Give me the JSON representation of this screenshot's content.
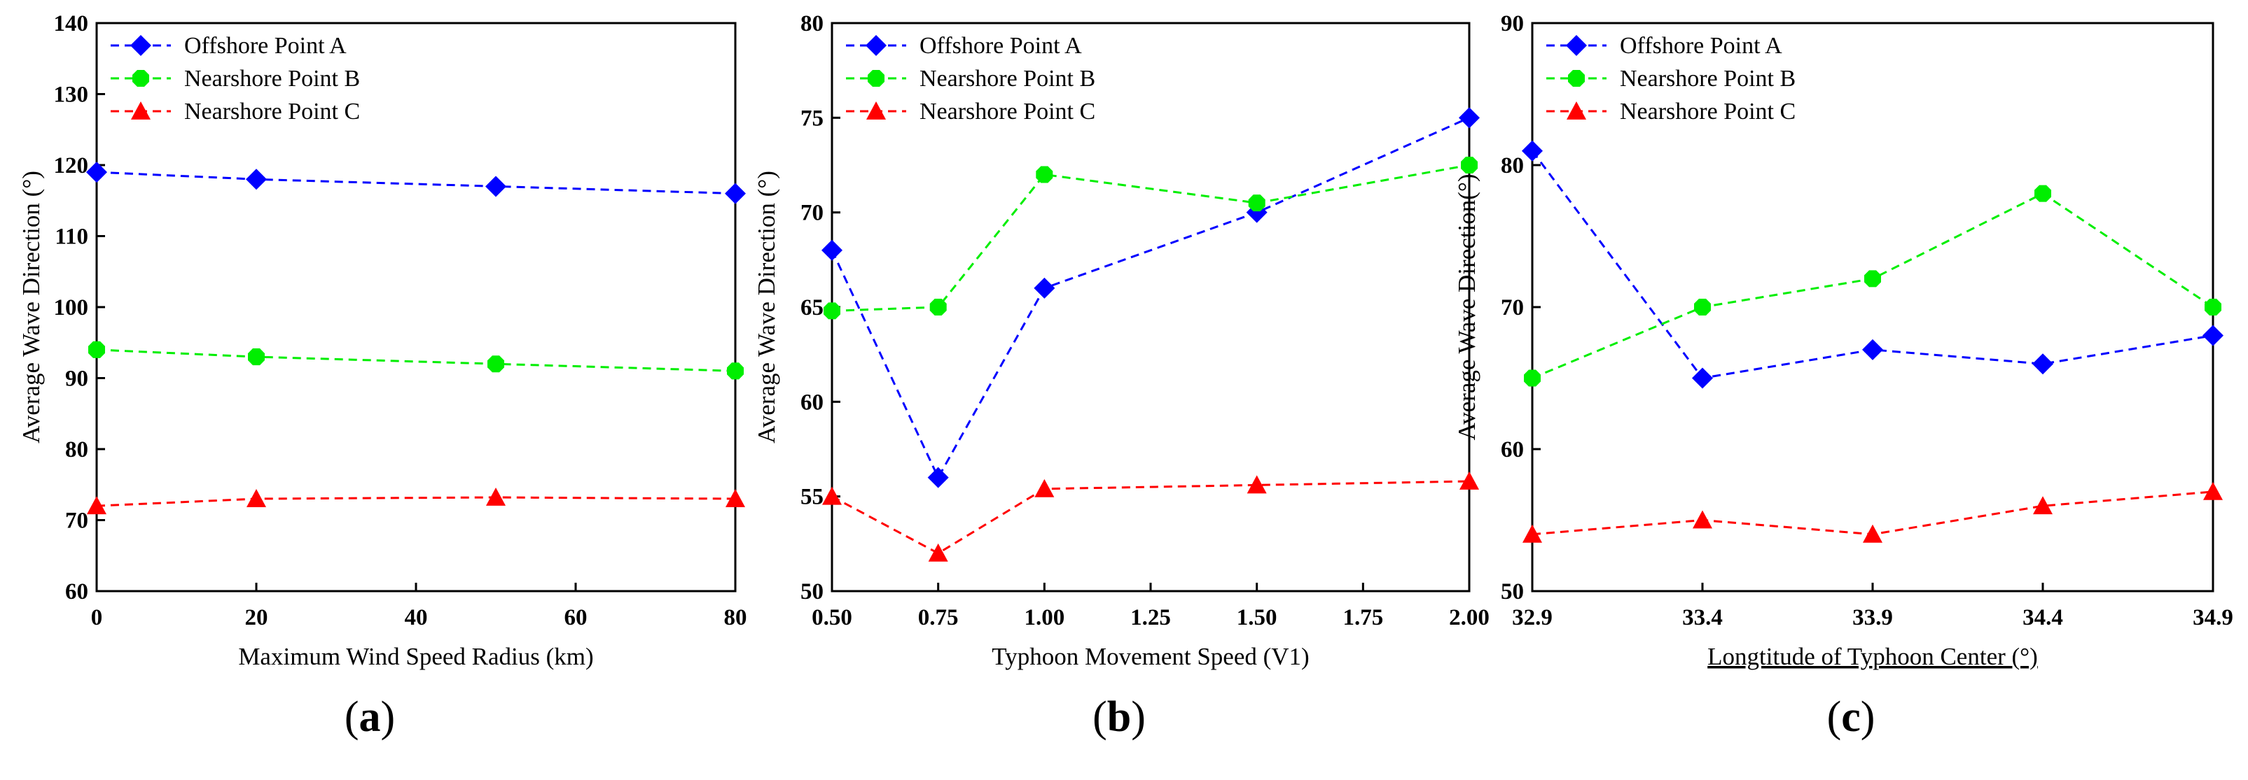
{
  "chart_data": [
    {
      "type": "line",
      "panel_label": "a",
      "title": "",
      "xlabel": "Maximum Wind Speed Radius (km)",
      "ylabel": "Average Wave Direction (°)",
      "x": [
        0,
        20,
        50,
        80
      ],
      "xticks": [
        0,
        20,
        40,
        60,
        80
      ],
      "xtick_labels": [
        "0",
        "20",
        "40",
        "60",
        "80"
      ],
      "xlim": [
        0,
        80
      ],
      "yticks": [
        60,
        70,
        80,
        90,
        100,
        110,
        120,
        130,
        140
      ],
      "ylim": [
        60,
        140
      ],
      "legend_position": "top-left",
      "series": [
        {
          "name": "Offshore Point A",
          "values": [
            119,
            118,
            117,
            116
          ],
          "color": "#0000ff",
          "marker": "diamond"
        },
        {
          "name": "Nearshore Point B",
          "values": [
            94,
            93,
            92,
            91
          ],
          "color": "#00ee00",
          "marker": "octagon"
        },
        {
          "name": "Nearshore Point C",
          "values": [
            72,
            73,
            73.2,
            73
          ],
          "color": "#ff0000",
          "marker": "triangle"
        }
      ]
    },
    {
      "type": "line",
      "panel_label": "b",
      "title": "",
      "xlabel": "Typhoon Movement Speed (V1)",
      "ylabel": "Average Wave Direction (°)",
      "x": [
        0.5,
        0.75,
        1.0,
        1.5,
        2.0
      ],
      "xticks": [
        0.5,
        0.75,
        1.0,
        1.25,
        1.5,
        1.75,
        2.0
      ],
      "xtick_labels": [
        "0.50",
        "0.75",
        "1.00",
        "1.25",
        "1.50",
        "1.75",
        "2.00"
      ],
      "xlim": [
        0.5,
        2.0
      ],
      "yticks": [
        50,
        55,
        60,
        65,
        70,
        75,
        80
      ],
      "ylim": [
        50,
        80
      ],
      "legend_position": "top-left",
      "series": [
        {
          "name": "Offshore Point A",
          "values": [
            68,
            56,
            66,
            70,
            75
          ],
          "color": "#0000ff",
          "marker": "diamond"
        },
        {
          "name": "Nearshore Point B",
          "values": [
            64.8,
            65,
            72,
            70.5,
            72.5
          ],
          "color": "#00ee00",
          "marker": "octagon"
        },
        {
          "name": "Nearshore Point C",
          "values": [
            55,
            52,
            55.4,
            55.6,
            55.8
          ],
          "color": "#ff0000",
          "marker": "triangle"
        }
      ]
    },
    {
      "type": "line",
      "panel_label": "c",
      "title": "",
      "xlabel": "Longtitude of Typhoon Center (°)",
      "ylabel": "Average Wave Direction(°)",
      "x": [
        32.9,
        33.4,
        33.9,
        34.4,
        34.9
      ],
      "xticks": [
        32.9,
        33.4,
        33.9,
        34.4,
        34.9
      ],
      "xtick_labels": [
        "32.9",
        "33.4",
        "33.9",
        "34.4",
        "34.9"
      ],
      "xlim": [
        32.9,
        34.9
      ],
      "yticks": [
        50,
        60,
        70,
        80,
        90
      ],
      "ylim": [
        50,
        90
      ],
      "legend_position": "top-left",
      "series": [
        {
          "name": "Offshore Point A",
          "values": [
            81,
            65,
            67,
            66,
            68
          ],
          "color": "#0000ff",
          "marker": "diamond"
        },
        {
          "name": "Nearshore Point B",
          "values": [
            65,
            70,
            72,
            78,
            70
          ],
          "color": "#00ee00",
          "marker": "octagon"
        },
        {
          "name": "Nearshore Point C",
          "values": [
            54,
            55,
            54,
            56,
            57
          ],
          "color": "#ff0000",
          "marker": "triangle"
        }
      ]
    }
  ]
}
